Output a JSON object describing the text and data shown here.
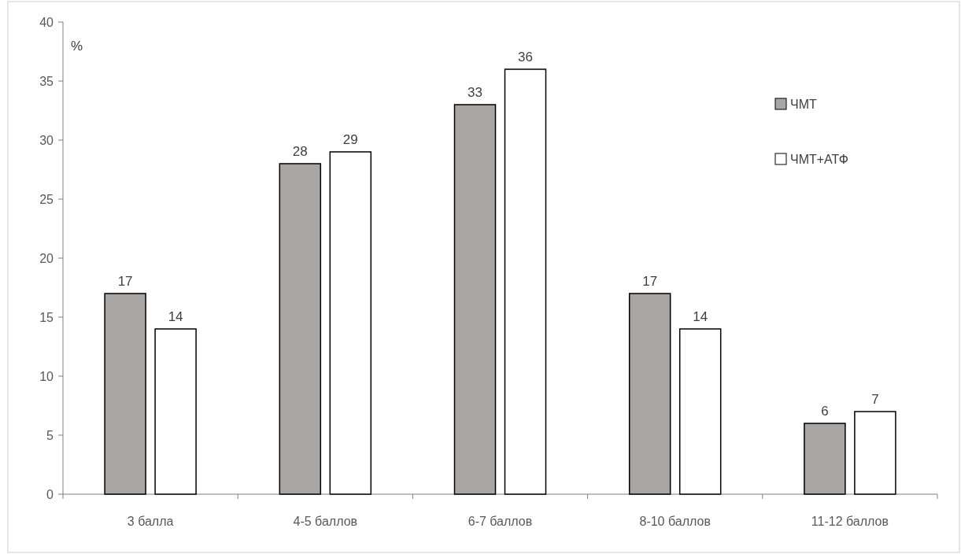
{
  "chart_data": {
    "type": "bar",
    "ylabel": "%",
    "categories": [
      "3 балла",
      "4-5 баллов",
      "6-7 баллов",
      "8-10 баллов",
      "11-12 баллов"
    ],
    "series": [
      {
        "name": "ЧМТ",
        "color": "#a9a5a3",
        "values": [
          17,
          28,
          33,
          17,
          6
        ]
      },
      {
        "name": "ЧМТ+АТФ",
        "color": "#ffffff",
        "values": [
          14,
          29,
          36,
          14,
          7
        ]
      }
    ],
    "ylim": [
      0,
      40
    ],
    "yticks": [
      0,
      5,
      10,
      15,
      20,
      25,
      30,
      35,
      40
    ],
    "data_labels": true,
    "grid": false,
    "legend": "top right"
  }
}
